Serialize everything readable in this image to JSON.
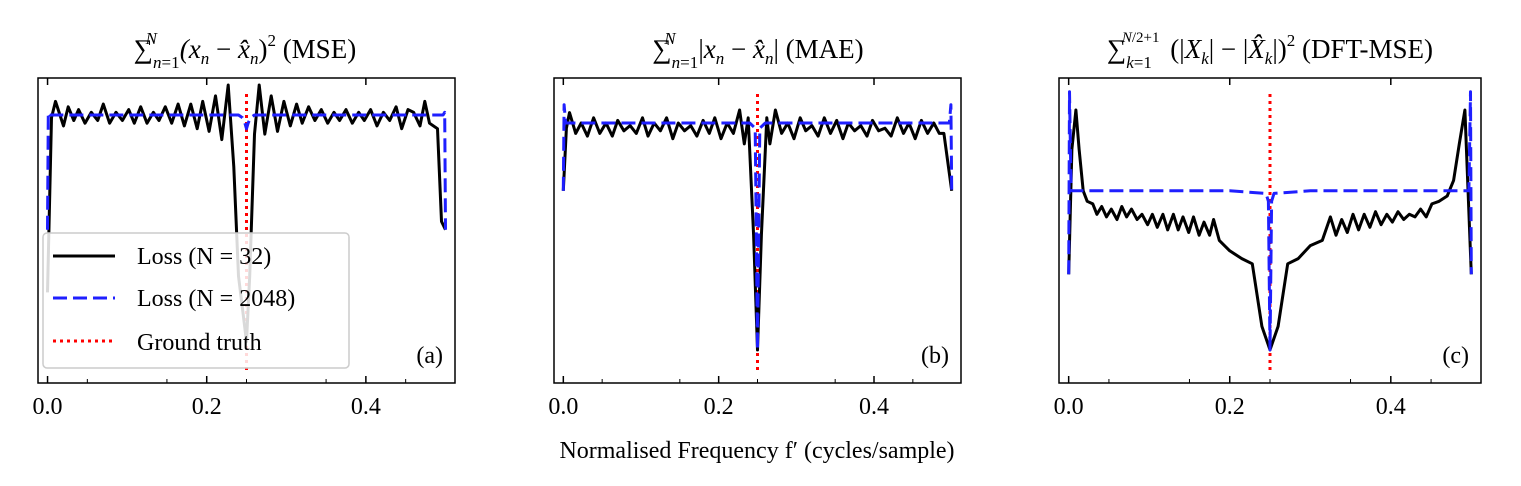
{
  "figure": {
    "xlabel": "Normalised Frequency f′ (cycles/sample)"
  },
  "colors": {
    "n32": "#000000",
    "n2048": "#1f1fff",
    "truth": "#ff0000",
    "axes": "#000000",
    "legend_frame": "#cccccc"
  },
  "chart_data": [
    {
      "type": "line",
      "panel_label": "(a)",
      "title": "∑n=1N (xn − x̂n)² (MSE)",
      "x_range": [
        0.0,
        0.5
      ],
      "x_ticks": [
        0.0,
        0.2,
        0.4
      ],
      "x_tick_labels": [
        "0.0",
        "0.2",
        "0.4"
      ],
      "y_ticks_labeled": false,
      "ground_truth_f": 0.25,
      "series": [
        {
          "name": "Loss (N = 32)",
          "style": "solid",
          "color": "#000000",
          "x": [
            0.0,
            0.005,
            0.01,
            0.02,
            0.026,
            0.033,
            0.039,
            0.047,
            0.055,
            0.063,
            0.07,
            0.078,
            0.086,
            0.094,
            0.102,
            0.109,
            0.117,
            0.125,
            0.133,
            0.14,
            0.148,
            0.156,
            0.164,
            0.172,
            0.18,
            0.188,
            0.195,
            0.203,
            0.211,
            0.219,
            0.227,
            0.234,
            0.24,
            0.25,
            0.254,
            0.26,
            0.266,
            0.273,
            0.281,
            0.289,
            0.297,
            0.305,
            0.313,
            0.32,
            0.328,
            0.336,
            0.344,
            0.352,
            0.36,
            0.367,
            0.375,
            0.383,
            0.391,
            0.398,
            0.406,
            0.414,
            0.422,
            0.43,
            0.438,
            0.445,
            0.453,
            0.46,
            0.468,
            0.474,
            0.48,
            0.49,
            0.495,
            0.5
          ],
          "y": [
            0.22,
            0.86,
            0.92,
            0.83,
            0.9,
            0.85,
            0.89,
            0.84,
            0.88,
            0.85,
            0.91,
            0.84,
            0.88,
            0.85,
            0.89,
            0.84,
            0.9,
            0.84,
            0.88,
            0.85,
            0.9,
            0.84,
            0.91,
            0.83,
            0.91,
            0.82,
            0.92,
            0.81,
            0.94,
            0.78,
            0.98,
            0.68,
            0.28,
            0.04,
            0.28,
            0.8,
            0.98,
            0.8,
            0.94,
            0.81,
            0.92,
            0.83,
            0.91,
            0.84,
            0.9,
            0.85,
            0.89,
            0.84,
            0.88,
            0.85,
            0.89,
            0.84,
            0.88,
            0.85,
            0.89,
            0.83,
            0.88,
            0.85,
            0.9,
            0.82,
            0.89,
            0.88,
            0.83,
            0.92,
            0.84,
            0.82,
            0.48,
            0.45
          ]
        },
        {
          "name": "Loss (N = 2048)",
          "style": "dashed",
          "color": "#1f1fff",
          "x": [
            0.0,
            0.001,
            0.003,
            0.05,
            0.1,
            0.15,
            0.2,
            0.24,
            0.245,
            0.248,
            0.25,
            0.252,
            0.255,
            0.26,
            0.3,
            0.35,
            0.4,
            0.45,
            0.497,
            0.499,
            0.5
          ],
          "y": [
            0.45,
            0.88,
            0.87,
            0.87,
            0.87,
            0.87,
            0.87,
            0.87,
            0.86,
            0.84,
            0.82,
            0.84,
            0.86,
            0.87,
            0.87,
            0.87,
            0.87,
            0.87,
            0.87,
            0.88,
            0.45
          ]
        }
      ]
    },
    {
      "type": "line",
      "panel_label": "(b)",
      "title": "∑n=1N |xn − x̂n| (MAE)",
      "x_range": [
        0.0,
        0.5
      ],
      "x_ticks": [
        0.0,
        0.2,
        0.4
      ],
      "x_tick_labels": [
        "0.0",
        "0.2",
        "0.4"
      ],
      "y_ticks_labeled": false,
      "ground_truth_f": 0.25,
      "series": [
        {
          "name": "Loss (N = 32)",
          "style": "solid",
          "color": "#000000",
          "x": [
            0.0,
            0.004,
            0.008,
            0.016,
            0.023,
            0.031,
            0.039,
            0.047,
            0.055,
            0.063,
            0.07,
            0.078,
            0.086,
            0.094,
            0.102,
            0.109,
            0.117,
            0.125,
            0.133,
            0.141,
            0.148,
            0.156,
            0.164,
            0.172,
            0.18,
            0.188,
            0.195,
            0.203,
            0.211,
            0.219,
            0.227,
            0.233,
            0.238,
            0.245,
            0.25,
            0.255,
            0.262,
            0.266,
            0.273,
            0.281,
            0.289,
            0.297,
            0.305,
            0.312,
            0.32,
            0.328,
            0.336,
            0.344,
            0.352,
            0.36,
            0.367,
            0.375,
            0.383,
            0.391,
            0.398,
            0.406,
            0.414,
            0.422,
            0.43,
            0.438,
            0.445,
            0.453,
            0.461,
            0.469,
            0.477,
            0.484,
            0.49,
            0.5
          ],
          "y": [
            0.62,
            0.86,
            0.92,
            0.84,
            0.88,
            0.83,
            0.9,
            0.84,
            0.88,
            0.83,
            0.89,
            0.85,
            0.87,
            0.84,
            0.9,
            0.83,
            0.88,
            0.85,
            0.9,
            0.82,
            0.88,
            0.85,
            0.87,
            0.83,
            0.89,
            0.84,
            0.9,
            0.82,
            0.88,
            0.84,
            0.93,
            0.8,
            0.9,
            0.45,
            0.01,
            0.45,
            0.9,
            0.8,
            0.93,
            0.84,
            0.88,
            0.82,
            0.9,
            0.85,
            0.87,
            0.83,
            0.9,
            0.84,
            0.89,
            0.82,
            0.88,
            0.85,
            0.87,
            0.83,
            0.89,
            0.85,
            0.86,
            0.83,
            0.9,
            0.84,
            0.88,
            0.82,
            0.89,
            0.84,
            0.88,
            0.84,
            0.84,
            0.62
          ]
        },
        {
          "name": "Loss (N = 2048)",
          "style": "dashed",
          "color": "#1f1fff",
          "x": [
            0.0,
            0.001,
            0.003,
            0.05,
            0.1,
            0.15,
            0.2,
            0.24,
            0.247,
            0.25,
            0.253,
            0.26,
            0.3,
            0.35,
            0.4,
            0.45,
            0.497,
            0.499,
            0.5
          ],
          "y": [
            0.62,
            0.95,
            0.88,
            0.88,
            0.88,
            0.88,
            0.88,
            0.88,
            0.86,
            0.01,
            0.86,
            0.88,
            0.88,
            0.88,
            0.88,
            0.88,
            0.88,
            0.95,
            0.62
          ]
        }
      ]
    },
    {
      "type": "line",
      "panel_label": "(c)",
      "title": "∑k=1N/2+1 (|Xk| − |X̂k|)² (DFT-MSE)",
      "x_range": [
        0.0,
        0.5
      ],
      "x_ticks": [
        0.0,
        0.2,
        0.4
      ],
      "x_tick_labels": [
        "0.0",
        "0.2",
        "0.4"
      ],
      "y_ticks_labeled": false,
      "ground_truth_f": 0.25,
      "series": [
        {
          "name": "Loss (N = 32)",
          "style": "solid",
          "color": "#000000",
          "x": [
            0.0,
            0.004,
            0.009,
            0.013,
            0.018,
            0.023,
            0.03,
            0.035,
            0.041,
            0.047,
            0.053,
            0.06,
            0.066,
            0.072,
            0.078,
            0.085,
            0.091,
            0.098,
            0.104,
            0.11,
            0.117,
            0.123,
            0.13,
            0.136,
            0.142,
            0.149,
            0.155,
            0.162,
            0.168,
            0.175,
            0.18,
            0.187,
            0.2,
            0.215,
            0.228,
            0.24,
            0.25,
            0.26,
            0.272,
            0.285,
            0.3,
            0.315,
            0.325,
            0.332,
            0.339,
            0.346,
            0.353,
            0.36,
            0.367,
            0.374,
            0.381,
            0.388,
            0.395,
            0.402,
            0.409,
            0.416,
            0.423,
            0.43,
            0.437,
            0.444,
            0.451,
            0.46,
            0.47,
            0.478,
            0.485,
            0.492,
            0.5
          ],
          "y": [
            0.3,
            0.78,
            0.93,
            0.78,
            0.62,
            0.58,
            0.57,
            0.53,
            0.56,
            0.52,
            0.55,
            0.51,
            0.56,
            0.52,
            0.55,
            0.51,
            0.53,
            0.49,
            0.53,
            0.48,
            0.53,
            0.47,
            0.53,
            0.47,
            0.52,
            0.46,
            0.52,
            0.45,
            0.5,
            0.45,
            0.51,
            0.43,
            0.39,
            0.36,
            0.34,
            0.1,
            0.01,
            0.1,
            0.34,
            0.36,
            0.41,
            0.43,
            0.52,
            0.45,
            0.51,
            0.46,
            0.53,
            0.47,
            0.53,
            0.48,
            0.54,
            0.49,
            0.53,
            0.5,
            0.54,
            0.51,
            0.53,
            0.52,
            0.55,
            0.52,
            0.57,
            0.58,
            0.6,
            0.66,
            0.8,
            0.93,
            0.3
          ]
        },
        {
          "name": "Loss (N = 2048)",
          "style": "dashed",
          "color": "#1f1fff",
          "x": [
            0.0,
            0.001,
            0.003,
            0.05,
            0.1,
            0.15,
            0.2,
            0.245,
            0.248,
            0.25,
            0.252,
            0.255,
            0.3,
            0.35,
            0.4,
            0.45,
            0.497,
            0.499,
            0.5
          ],
          "y": [
            0.3,
            1.0,
            0.62,
            0.62,
            0.62,
            0.62,
            0.62,
            0.61,
            0.58,
            0.01,
            0.58,
            0.61,
            0.62,
            0.62,
            0.62,
            0.62,
            0.62,
            1.0,
            0.3
          ]
        }
      ]
    }
  ],
  "legend": {
    "location": "lower-left of panel (a)",
    "entries": [
      {
        "label": "Loss (N = 32)",
        "style": "solid",
        "color": "#000000"
      },
      {
        "label": "Loss (N = 2048)",
        "style": "dashed",
        "color": "#1f1fff"
      },
      {
        "label": "Ground truth",
        "style": "dotted",
        "color": "#ff0000"
      }
    ]
  }
}
